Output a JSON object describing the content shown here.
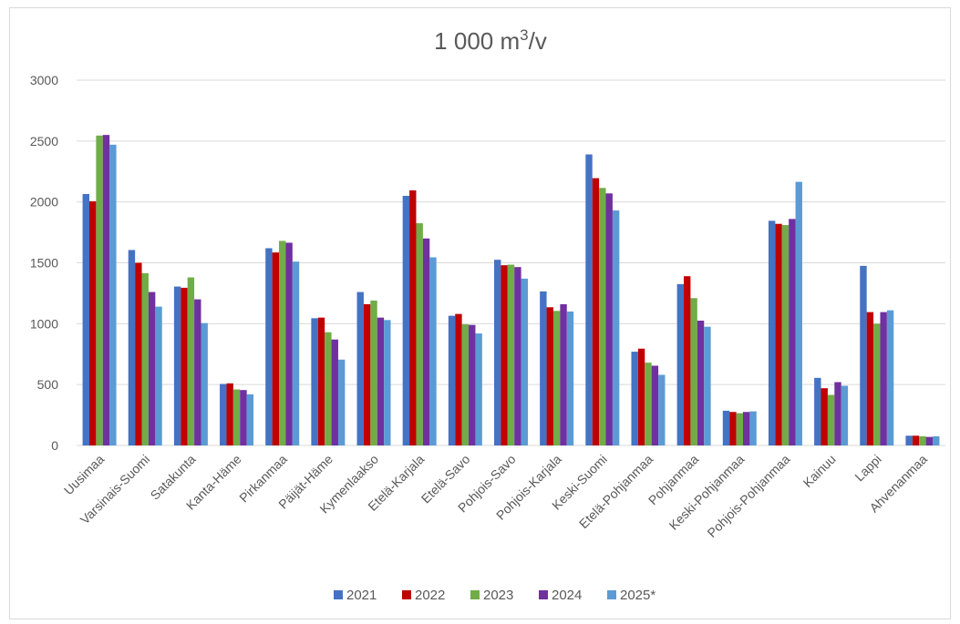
{
  "chart_data": {
    "type": "bar",
    "title": "1 000 m",
    "title_sup": "3",
    "title_suffix": "/v",
    "xlabel": "",
    "ylabel": "",
    "ylim": [
      0,
      3000
    ],
    "yticks": [
      0,
      500,
      1000,
      1500,
      2000,
      2500,
      3000
    ],
    "grid": true,
    "legend_position": "bottom",
    "categories": [
      "Uusimaa",
      "Varsinais-Suomi",
      "Satakunta",
      "Kanta-Häme",
      "Pirkanmaa",
      "Päijät-Häme",
      "Kymenlaakso",
      "Etelä-Karjala",
      "Etelä-Savo",
      "Pohjois-Savo",
      "Pohjois-Karjala",
      "Keski-Suomi",
      "Etelä-Pohjanmaa",
      "Pohjanmaa",
      "Keski-Pohjanmaa",
      "Pohjois-Pohjanmaa",
      "Kainuu",
      "Lappi",
      "Ahvenanmaa"
    ],
    "series": [
      {
        "name": "2021",
        "color": "#4472C4",
        "values": [
          2065,
          1605,
          1305,
          505,
          1620,
          1045,
          1260,
          2050,
          1065,
          1525,
          1265,
          2390,
          770,
          1325,
          285,
          1845,
          555,
          1475,
          80
        ]
      },
      {
        "name": "2022",
        "color": "#C00000",
        "values": [
          2005,
          1500,
          1295,
          510,
          1585,
          1050,
          1160,
          2095,
          1080,
          1480,
          1135,
          2195,
          795,
          1390,
          275,
          1820,
          470,
          1095,
          80
        ]
      },
      {
        "name": "2023",
        "color": "#70AD47",
        "values": [
          2545,
          1415,
          1380,
          460,
          1680,
          930,
          1190,
          1825,
          995,
          1485,
          1105,
          2115,
          680,
          1210,
          265,
          1810,
          415,
          1000,
          75
        ]
      },
      {
        "name": "2024",
        "color": "#7030A0",
        "values": [
          2550,
          1260,
          1200,
          455,
          1665,
          870,
          1050,
          1700,
          990,
          1465,
          1160,
          2070,
          655,
          1025,
          275,
          1860,
          520,
          1095,
          70
        ]
      },
      {
        "name": "2025*",
        "color": "#5B9BD5",
        "values": [
          2470,
          1140,
          1005,
          420,
          1510,
          705,
          1030,
          1545,
          920,
          1370,
          1100,
          1930,
          580,
          975,
          280,
          2165,
          490,
          1110,
          75
        ]
      }
    ]
  }
}
